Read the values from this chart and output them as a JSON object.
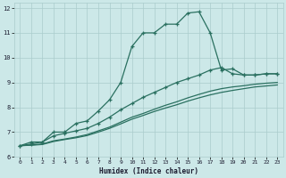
{
  "xlabel": "Humidex (Indice chaleur)",
  "ylabel": "",
  "xlim": [
    -0.5,
    23.5
  ],
  "ylim": [
    6,
    12.2
  ],
  "yticks": [
    6,
    7,
    8,
    9,
    10,
    11,
    12
  ],
  "xticks": [
    0,
    1,
    2,
    3,
    4,
    5,
    6,
    7,
    8,
    9,
    10,
    11,
    12,
    13,
    14,
    15,
    16,
    17,
    18,
    19,
    20,
    21,
    22,
    23
  ],
  "bg_color": "#cce8e8",
  "grid_color": "#aacccc",
  "line_color": "#2a7060",
  "series1_x": [
    0,
    1,
    2,
    3,
    4,
    5,
    6,
    7,
    8,
    9,
    10,
    11,
    12,
    13,
    14,
    15,
    16,
    17,
    18,
    19,
    20,
    21,
    22,
    23
  ],
  "series1_y": [
    6.45,
    6.6,
    6.6,
    7.0,
    7.0,
    7.35,
    7.45,
    7.85,
    8.3,
    9.0,
    10.45,
    11.0,
    11.0,
    11.35,
    11.35,
    11.8,
    11.85,
    11.0,
    9.5,
    9.55,
    9.3,
    9.3,
    9.35,
    9.35
  ],
  "series1_has_markers": true,
  "series2_x": [
    0,
    1,
    2,
    3,
    4,
    5,
    6,
    7,
    8,
    9,
    10,
    11,
    12,
    13,
    14,
    15,
    16,
    17,
    18,
    19,
    20,
    21,
    22,
    23
  ],
  "series2_y": [
    6.45,
    6.52,
    6.6,
    6.85,
    6.95,
    7.05,
    7.15,
    7.35,
    7.6,
    7.9,
    8.15,
    8.4,
    8.6,
    8.8,
    9.0,
    9.15,
    9.3,
    9.5,
    9.6,
    9.35,
    9.3,
    9.3,
    9.35,
    9.35
  ],
  "series3_x": [
    0,
    1,
    2,
    3,
    4,
    5,
    6,
    7,
    8,
    9,
    10,
    11,
    12,
    13,
    14,
    15,
    16,
    17,
    18,
    19,
    20,
    21,
    22,
    23
  ],
  "series3_y": [
    6.45,
    6.48,
    6.52,
    6.65,
    6.72,
    6.8,
    6.9,
    7.05,
    7.2,
    7.4,
    7.6,
    7.75,
    7.92,
    8.08,
    8.22,
    8.38,
    8.52,
    8.65,
    8.75,
    8.82,
    8.87,
    8.93,
    8.97,
    9.0
  ],
  "series4_x": [
    0,
    1,
    2,
    3,
    4,
    5,
    6,
    7,
    8,
    9,
    10,
    11,
    12,
    13,
    14,
    15,
    16,
    17,
    18,
    19,
    20,
    21,
    22,
    23
  ],
  "series4_y": [
    6.45,
    6.47,
    6.5,
    6.62,
    6.7,
    6.77,
    6.86,
    7.0,
    7.15,
    7.33,
    7.52,
    7.67,
    7.83,
    7.97,
    8.1,
    8.25,
    8.38,
    8.5,
    8.6,
    8.68,
    8.75,
    8.82,
    8.86,
    8.9
  ]
}
